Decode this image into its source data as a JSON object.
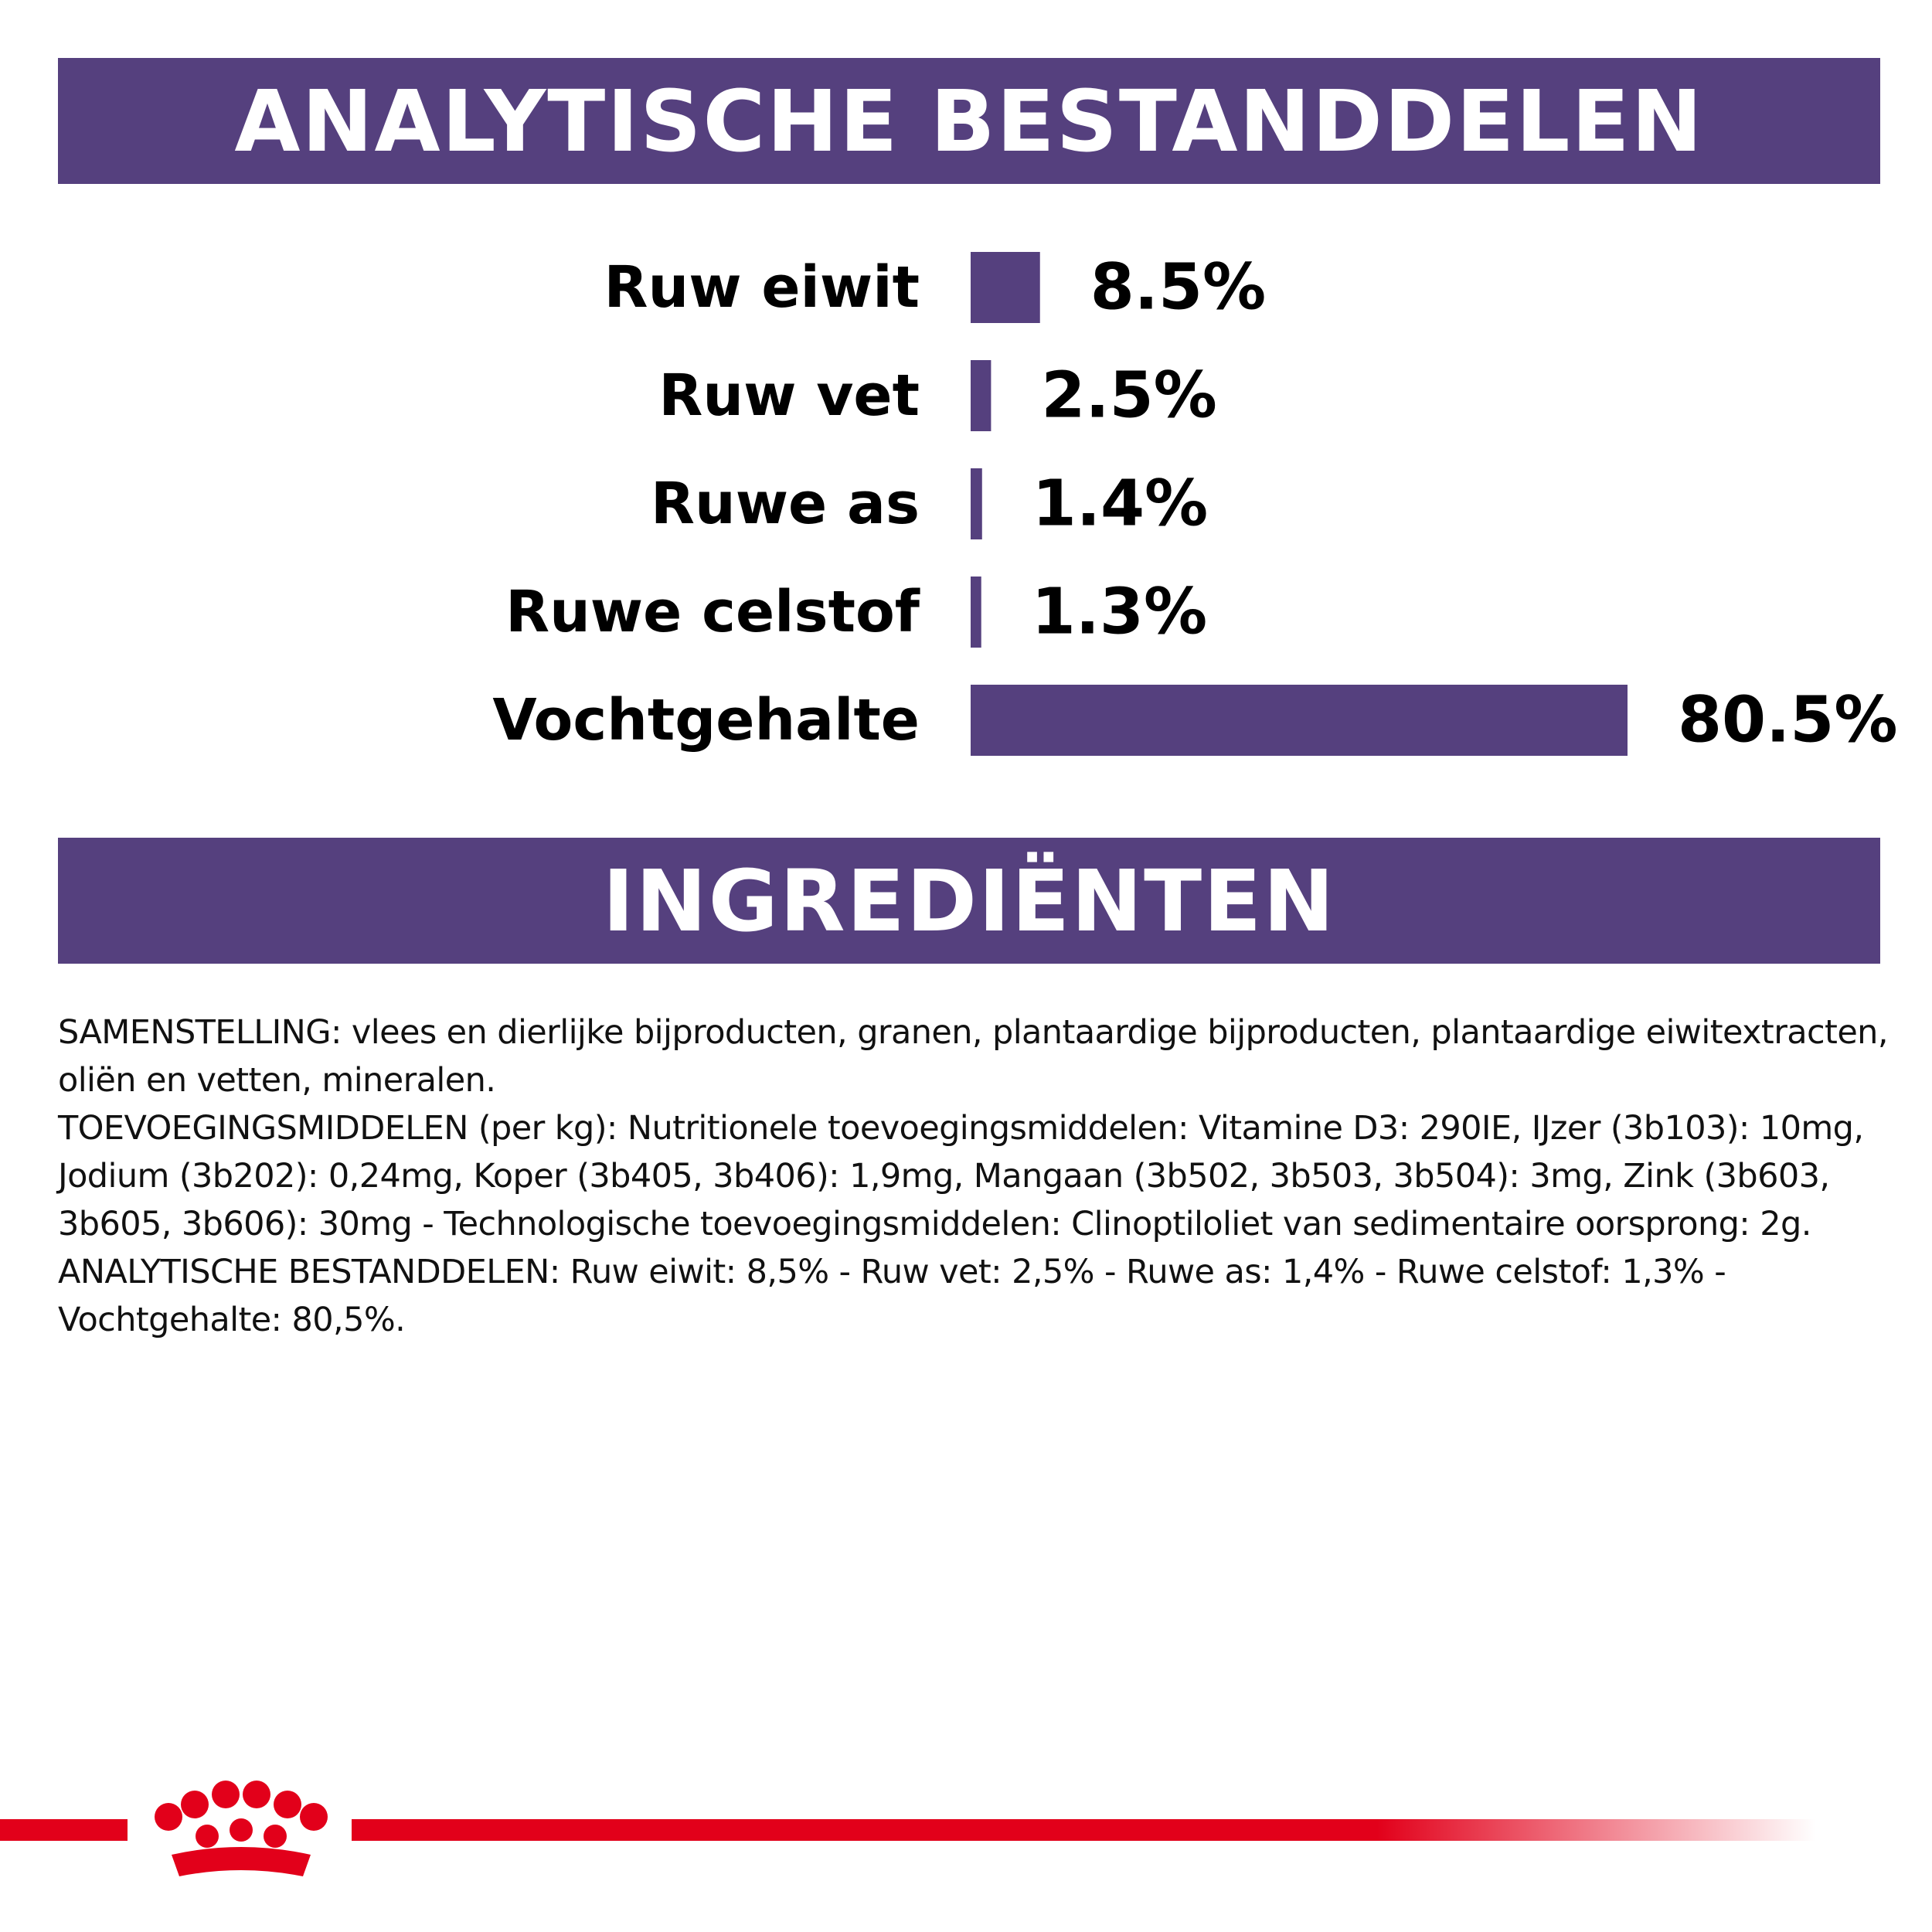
{
  "colors": {
    "accent": "#55407e",
    "brand_red": "#e2001a"
  },
  "sections": {
    "analytic_title": "ANALYTISCHE BESTANDDELEN",
    "ingredients_title": "INGREDIËNTEN"
  },
  "chart_data": {
    "type": "bar",
    "orientation": "horizontal",
    "categories": [
      "Ruw eiwit",
      "Ruw vet",
      "Ruwe as",
      "Ruwe celstof",
      "Vochtgehalte"
    ],
    "values": [
      8.5,
      2.5,
      1.4,
      1.3,
      80.5
    ],
    "value_labels": [
      "8.5%",
      "2.5%",
      "1.4%",
      "1.3%",
      "80.5%"
    ],
    "xlim": [
      0,
      80.5
    ],
    "grid": false,
    "legend": "none"
  },
  "ingredients": {
    "paragraphs": [
      "SAMENSTELLING: vlees en dierlijke bijproducten, granen, plantaardige bijproducten, plantaardige eiwitextracten, oliën en vetten, mineralen.",
      "TOEVOEGINGSMIDDELEN (per kg): Nutritionele toevoegingsmiddelen: Vitamine D3: 290IE, IJzer (3b103): 10mg, Jodium (3b202): 0,24mg, Koper (3b405, 3b406): 1,9mg, Mangaan (3b502, 3b503, 3b504): 3mg, Zink (3b603, 3b605, 3b606): 30mg - Technologische toevoegingsmiddelen: Clinoptiloliet van sedimentaire oorsprong: 2g.",
      "ANALYTISCHE BESTANDDELEN: Ruw eiwit: 8,5% - Ruw vet: 2,5% - Ruwe as: 1,4% - Ruwe celstof: 1,3% - Vochtgehalte: 80,5%."
    ]
  }
}
